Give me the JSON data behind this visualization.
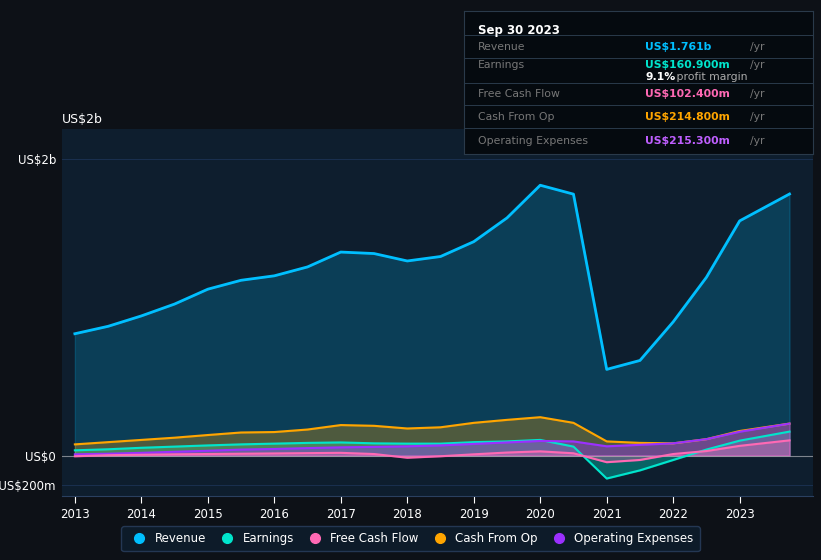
{
  "bg_color": "#0d1117",
  "plot_bg_color": "#0e1e2e",
  "grid_color": "#1a3050",
  "title_box": {
    "date": "Sep 30 2023",
    "rows": [
      {
        "label": "Revenue",
        "value": "US$1.761b",
        "unit": "/yr",
        "value_color": "#00bfff"
      },
      {
        "label": "Earnings",
        "value": "US$160.900m",
        "unit": "/yr",
        "value_color": "#00e5cc"
      },
      {
        "label": "",
        "value": "9.1%",
        "unit": " profit margin",
        "value_color": "#ffffff"
      },
      {
        "label": "Free Cash Flow",
        "value": "US$102.400m",
        "unit": "/yr",
        "value_color": "#ff69b4"
      },
      {
        "label": "Cash From Op",
        "value": "US$214.800m",
        "unit": "/yr",
        "value_color": "#ffa500"
      },
      {
        "label": "Operating Expenses",
        "value": "US$215.300m",
        "unit": "/yr",
        "value_color": "#bf5fff"
      }
    ]
  },
  "years": [
    2013.0,
    2013.5,
    2014.0,
    2014.5,
    2015.0,
    2015.5,
    2016.0,
    2016.5,
    2017.0,
    2017.5,
    2018.0,
    2018.5,
    2019.0,
    2019.5,
    2020.0,
    2020.5,
    2021.0,
    2021.5,
    2022.0,
    2022.5,
    2023.0,
    2023.75
  ],
  "revenue": [
    820,
    870,
    940,
    1020,
    1120,
    1180,
    1210,
    1270,
    1370,
    1360,
    1310,
    1340,
    1440,
    1600,
    1820,
    1760,
    580,
    640,
    900,
    1200,
    1580,
    1761
  ],
  "earnings": [
    35,
    42,
    52,
    60,
    68,
    75,
    80,
    85,
    88,
    82,
    80,
    80,
    90,
    95,
    105,
    60,
    -155,
    -100,
    -30,
    40,
    100,
    161
  ],
  "free_cash": [
    -5,
    2,
    5,
    8,
    10,
    12,
    14,
    16,
    18,
    10,
    -15,
    -5,
    8,
    20,
    28,
    15,
    -45,
    -30,
    10,
    30,
    65,
    102
  ],
  "cash_from_op": [
    75,
    90,
    105,
    120,
    138,
    155,
    158,
    175,
    205,
    200,
    182,
    190,
    220,
    240,
    258,
    220,
    95,
    85,
    82,
    110,
    165,
    215
  ],
  "op_expenses": [
    8,
    12,
    18,
    25,
    32,
    40,
    44,
    50,
    55,
    58,
    62,
    68,
    78,
    88,
    98,
    95,
    62,
    72,
    82,
    110,
    160,
    215
  ],
  "revenue_color": "#00bfff",
  "earnings_color": "#00e5cc",
  "free_cash_color": "#ff69b4",
  "cash_from_op_color": "#ffa500",
  "op_expenses_color": "#9b30ff",
  "ylim": [
    -270,
    2200
  ],
  "yticks": [
    -200,
    0,
    2000
  ],
  "ytick_labels": [
    "-US$200m",
    "US$0",
    "US$2b"
  ],
  "xtick_positions": [
    2013,
    2014,
    2015,
    2016,
    2017,
    2018,
    2019,
    2020,
    2021,
    2022,
    2023
  ],
  "xtick_labels": [
    "2013",
    "2014",
    "2015",
    "2016",
    "2017",
    "2018",
    "2019",
    "2020",
    "2021",
    "2022",
    "2023"
  ],
  "legend": [
    {
      "label": "Revenue",
      "color": "#00bfff"
    },
    {
      "label": "Earnings",
      "color": "#00e5cc"
    },
    {
      "label": "Free Cash Flow",
      "color": "#ff69b4"
    },
    {
      "label": "Cash From Op",
      "color": "#ffa500"
    },
    {
      "label": "Operating Expenses",
      "color": "#9b30ff"
    }
  ]
}
